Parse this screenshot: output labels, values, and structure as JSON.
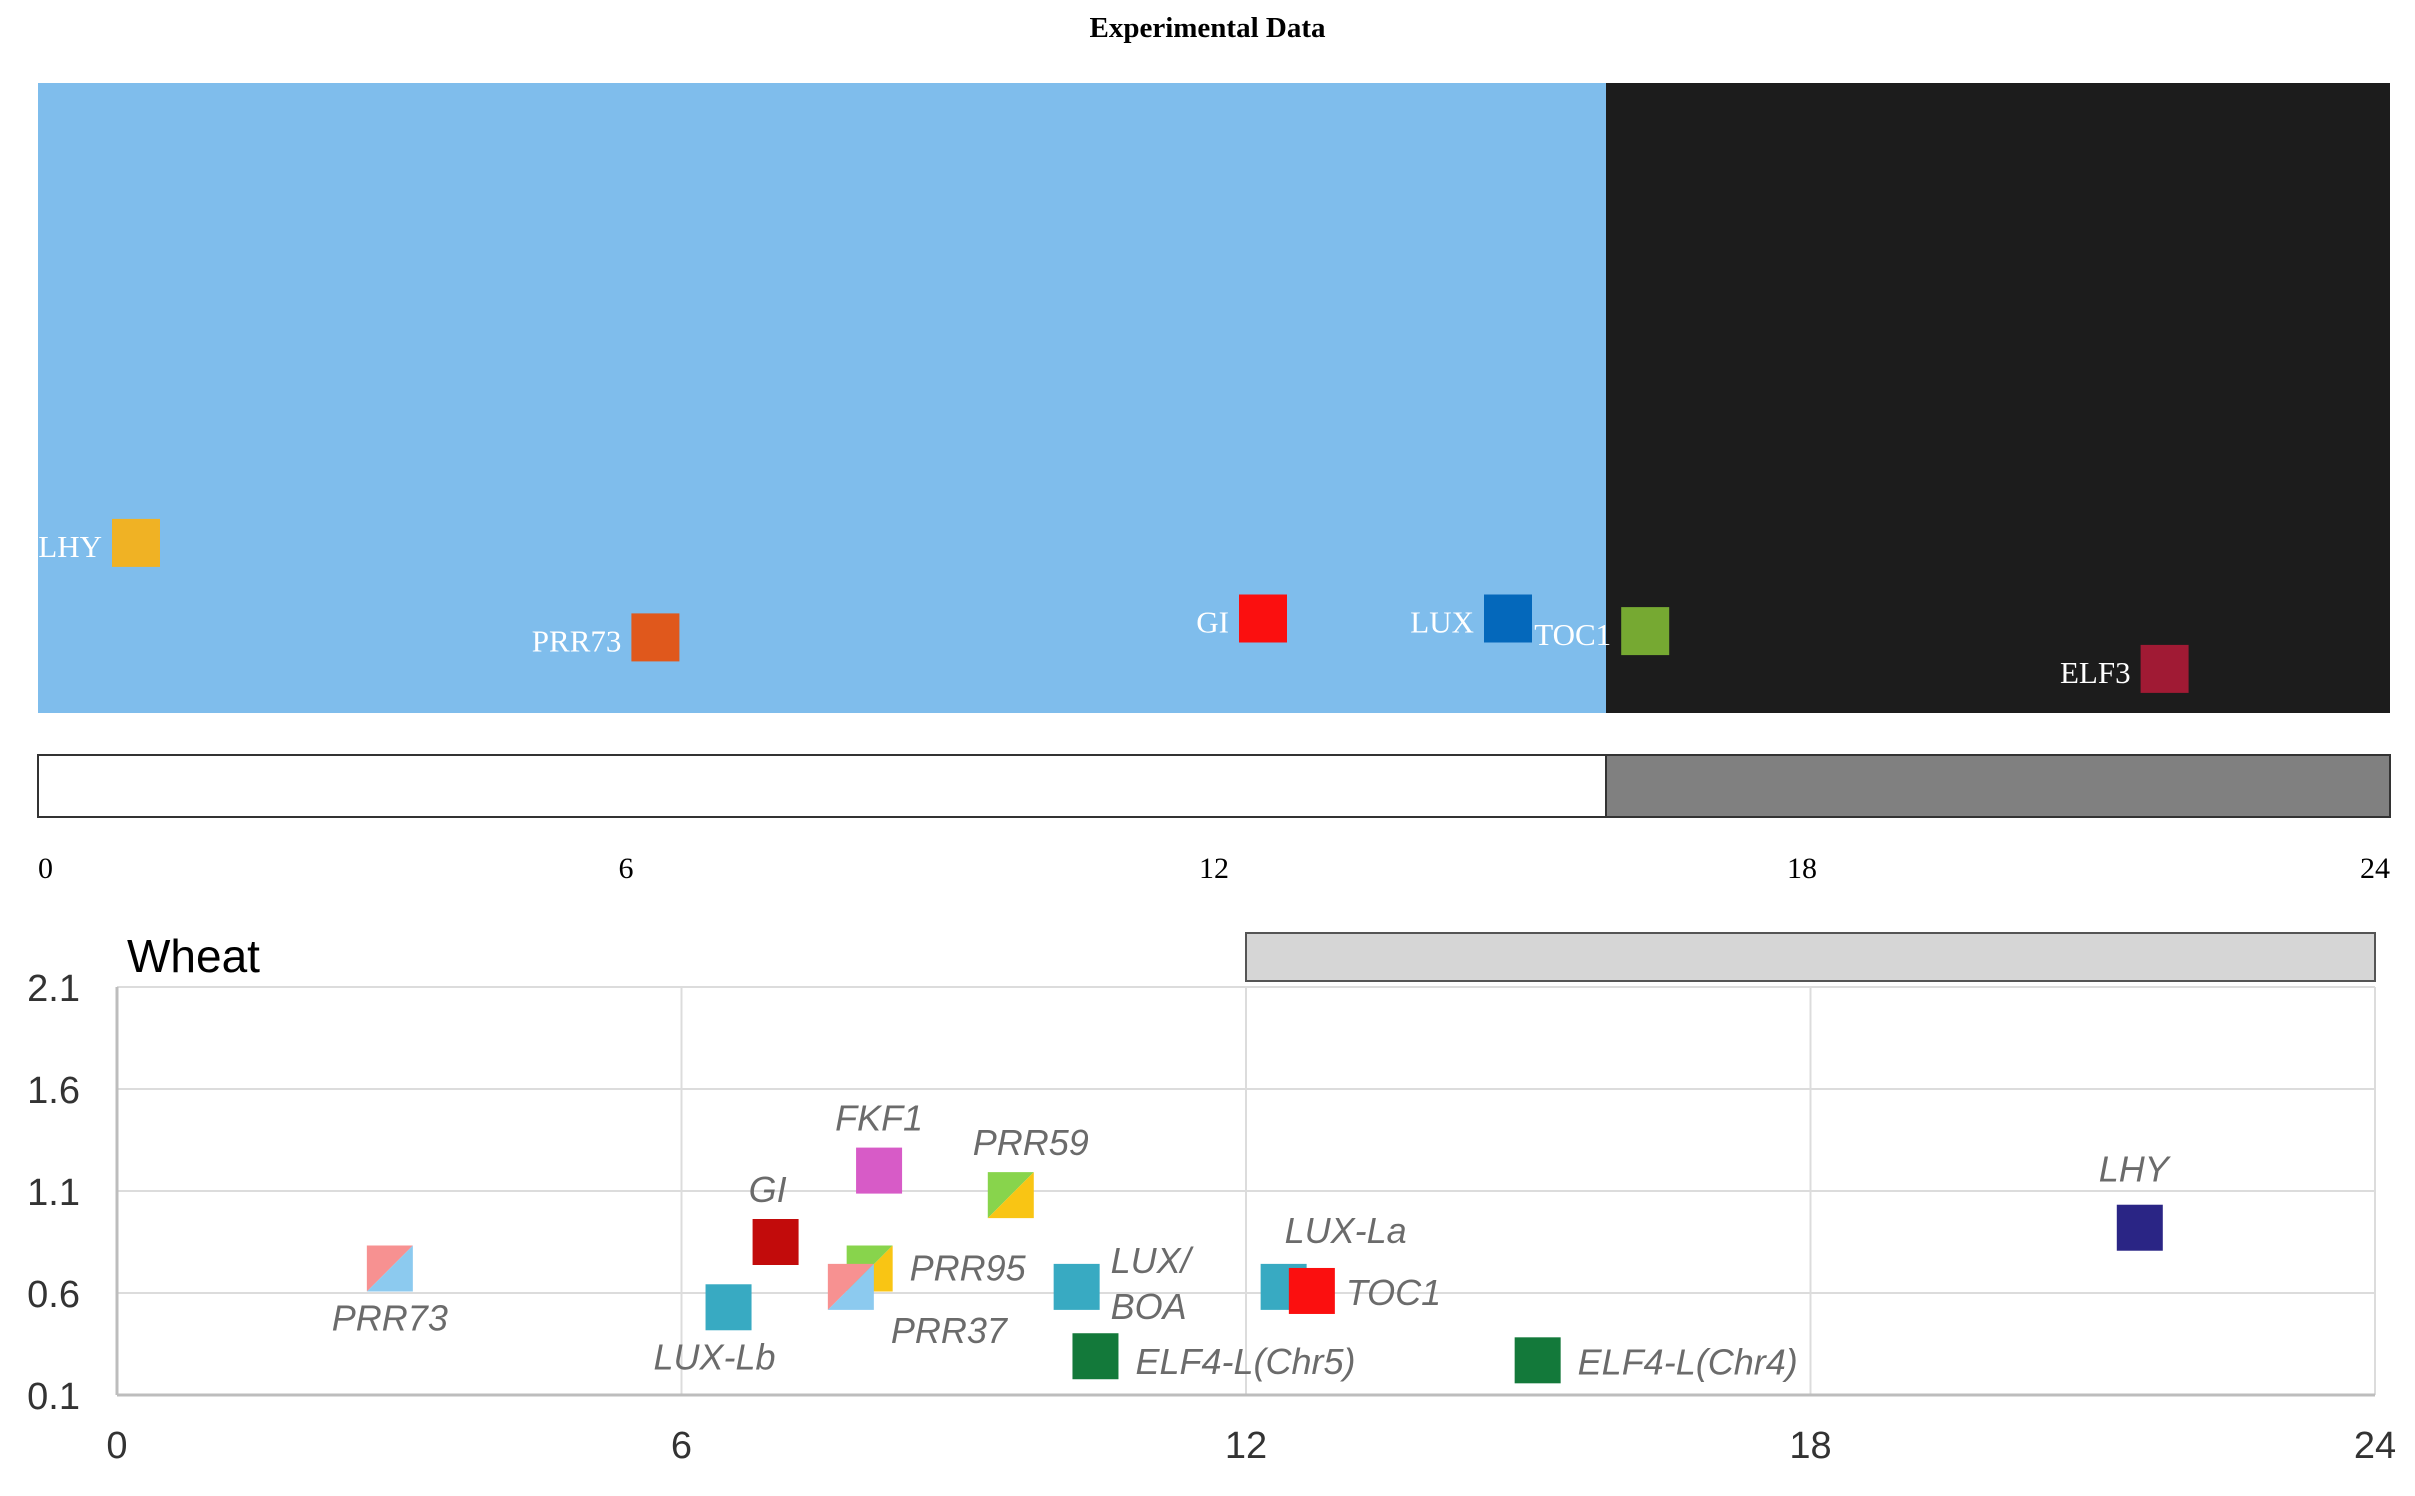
{
  "title": "Experimental Data",
  "chart_data": [
    {
      "type": "scatter",
      "title": "Experimental Data",
      "xlim": [
        0,
        24
      ],
      "x_ticks": [
        "0",
        "6",
        "12",
        "18",
        "24"
      ],
      "background": {
        "light_period_end": 16,
        "light_color": "#7fbdec",
        "dark_color": "#1c1c1c"
      },
      "photoperiod_bar": {
        "light_end": 16,
        "light_color": "#ffffff",
        "dark_color": "#808080"
      },
      "points": [
        {
          "label": "LHY",
          "x": 1.0,
          "level": 0.27,
          "color": "#f0b224"
        },
        {
          "label": "PRR73",
          "x": 6.3,
          "level": 0.12,
          "color": "#e0581c"
        },
        {
          "label": "GI",
          "x": 12.5,
          "level": 0.15,
          "color": "#fb0f0f"
        },
        {
          "label": "LUX",
          "x": 15.0,
          "level": 0.15,
          "color": "#0468bb"
        },
        {
          "label": "TOC1",
          "x": 16.4,
          "level": 0.13,
          "color": "#76a932"
        },
        {
          "label": "ELF3",
          "x": 21.7,
          "level": 0.07,
          "color": "#a01a34"
        }
      ]
    },
    {
      "type": "scatter",
      "title": "Wheat",
      "xlim": [
        0,
        24
      ],
      "ylim": [
        0.1,
        2.1
      ],
      "x_ticks": [
        "0",
        "6",
        "12",
        "18",
        "24"
      ],
      "y_ticks": [
        "0.1",
        "0.6",
        "1.1",
        "1.6",
        "2.1"
      ],
      "grid": true,
      "dark_period_bar": {
        "start": 12,
        "end": 24,
        "color": "#d6d6d6"
      },
      "points": [
        {
          "label": "PRR73",
          "x": 2.9,
          "y": 0.72,
          "colors": [
            "#f79191",
            "#8ccaef"
          ]
        },
        {
          "label": "GI",
          "x": 7.0,
          "y": 0.85,
          "colors": [
            "#c20b0b"
          ]
        },
        {
          "label": "LUX-Lb",
          "x": 6.5,
          "y": 0.53,
          "colors": [
            "#38aac2"
          ]
        },
        {
          "label": "FKF1",
          "x": 8.1,
          "y": 1.2,
          "colors": [
            "#d75bc7"
          ]
        },
        {
          "label": "PRR95",
          "x": 8.0,
          "y": 0.72,
          "colors": [
            "#88d44c",
            "#f9c514"
          ]
        },
        {
          "label": "PRR37",
          "x": 7.8,
          "y": 0.63,
          "colors": [
            "#f79191",
            "#8ccaef"
          ]
        },
        {
          "label": "PRR59",
          "x": 9.5,
          "y": 1.08,
          "colors": [
            "#88d44c",
            "#f9c514"
          ]
        },
        {
          "label": "LUX/\nBOA",
          "x": 10.2,
          "y": 0.63,
          "colors": [
            "#38aac2"
          ]
        },
        {
          "label": "ELF4-L(Chr5)",
          "x": 10.4,
          "y": 0.29,
          "colors": [
            "#13793a"
          ]
        },
        {
          "label": "LUX-La",
          "x": 12.4,
          "y": 0.63,
          "colors": [
            "#38aac2"
          ]
        },
        {
          "label": "TOC1",
          "x": 12.7,
          "y": 0.61,
          "colors": [
            "#fb0f0f"
          ]
        },
        {
          "label": "ELF4-L(Chr4)",
          "x": 15.1,
          "y": 0.27,
          "colors": [
            "#13793a"
          ]
        },
        {
          "label": "LHY",
          "x": 21.5,
          "y": 0.92,
          "colors": [
            "#2a2585"
          ]
        }
      ]
    }
  ]
}
